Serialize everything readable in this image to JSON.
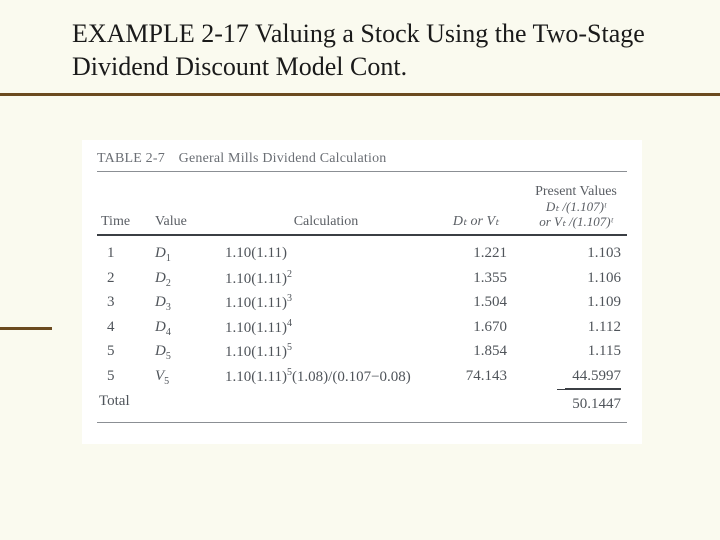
{
  "slide": {
    "title": "EXAMPLE 2-17 Valuing a Stock Using the Two-Stage Dividend Discount Model Cont."
  },
  "table": {
    "caption_num": "TABLE 2-7",
    "caption_text": "General Mills Dividend Calculation",
    "headers": {
      "time": "Time",
      "value": "Value",
      "calc": "Calculation",
      "d_or_v": "Dₜ or Vₜ",
      "pv_label": "Present Values",
      "pv_f1": "Dₜ /(1.107)ᵗ",
      "pv_f2": "or Vₜ /(1.107)ᵗ"
    },
    "rows": [
      {
        "time": "1",
        "value_sym": "D",
        "value_sub": "1",
        "calc": "1.10(1.11)",
        "calc_sup": "",
        "d": "1.221",
        "pv": "1.103"
      },
      {
        "time": "2",
        "value_sym": "D",
        "value_sub": "2",
        "calc": "1.10(1.11)",
        "calc_sup": "2",
        "d": "1.355",
        "pv": "1.106"
      },
      {
        "time": "3",
        "value_sym": "D",
        "value_sub": "3",
        "calc": "1.10(1.11)",
        "calc_sup": "3",
        "d": "1.504",
        "pv": "1.109"
      },
      {
        "time": "4",
        "value_sym": "D",
        "value_sub": "4",
        "calc": "1.10(1.11)",
        "calc_sup": "4",
        "d": "1.670",
        "pv": "1.112"
      },
      {
        "time": "5",
        "value_sym": "D",
        "value_sub": "5",
        "calc": "1.10(1.11)",
        "calc_sup": "5",
        "d": "1.854",
        "pv": "1.115"
      },
      {
        "time": "5",
        "value_sym": "V",
        "value_sub": "5",
        "calc": "1.10(1.11)",
        "calc_sup": "5",
        "calc_tail": "(1.08)/(0.107−0.08)",
        "d": "74.143",
        "pv": "44.5997",
        "pv_underline": true
      }
    ],
    "total_label": "Total",
    "total_value": "50.1447"
  },
  "style": {
    "bg": "#fafaef",
    "accent": "#6b4a1f",
    "figure_bg": "#ffffff",
    "text_muted": "#5a5e64"
  }
}
